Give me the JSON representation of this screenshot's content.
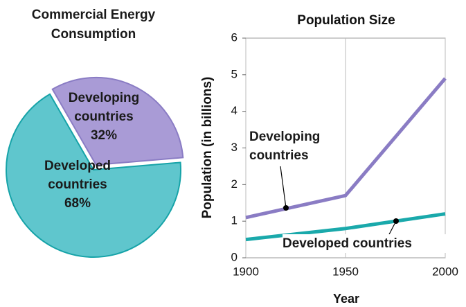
{
  "chart_data": [
    {
      "type": "pie",
      "title": "Commercial Energy Consumption",
      "categories": [
        "Developing countries",
        "Developed countries"
      ],
      "values": [
        32,
        68
      ],
      "value_labels": [
        "32%",
        "68%"
      ],
      "colors": [
        "#a99bd6",
        "#5fc6cd"
      ]
    },
    {
      "type": "line",
      "title": "Population Size",
      "x_label": "Year",
      "y_label": "Population (in billions)",
      "x": [
        1900,
        1950,
        2000
      ],
      "series": [
        {
          "name": "Developing countries",
          "color": "#8a7cc4",
          "values": [
            1.1,
            1.7,
            4.9
          ]
        },
        {
          "name": "Developed countries",
          "color": "#1aa9ab",
          "values": [
            0.5,
            0.8,
            1.2
          ]
        }
      ],
      "xlim": [
        1900,
        2000
      ],
      "xticks": [
        1900,
        1950,
        2000
      ],
      "ylim": [
        0,
        6
      ],
      "yticks": [
        0,
        1,
        2,
        3,
        4,
        5,
        6
      ],
      "grid": "x"
    }
  ]
}
